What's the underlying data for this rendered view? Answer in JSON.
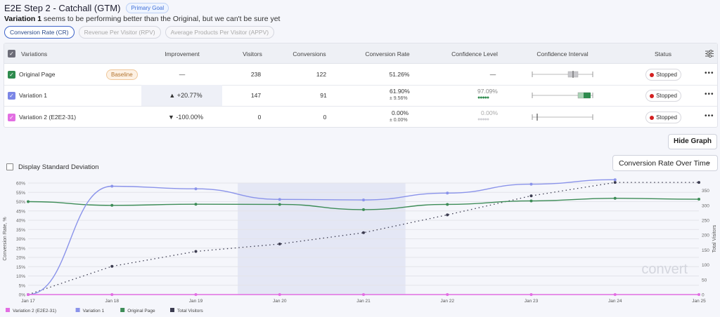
{
  "header": {
    "title": "E2E Step 2 - Catchall (GTM)",
    "goal_badge": "Primary Goal",
    "subtitle_strong": "Variation 1",
    "subtitle_rest": " seems to be performing better than the Original, but we can't be sure yet"
  },
  "goal_tabs": [
    {
      "label": "Conversion Rate (CR)",
      "active": true
    },
    {
      "label": "Revenue Per Visitor (RPV)",
      "active": false
    },
    {
      "label": "Average Products Per Visitor (APPV)",
      "active": false
    }
  ],
  "table": {
    "headers": {
      "variations": "Variations",
      "improvement": "Improvement",
      "visitors": "Visitors",
      "conversions": "Conversions",
      "conversion_rate": "Conversion Rate",
      "confidence_level": "Confidence Level",
      "confidence_interval": "Confidence Interval",
      "status": "Status"
    },
    "rows": [
      {
        "name": "Original Page",
        "badge": "Baseline",
        "improvement": "—",
        "visitors": "238",
        "conversions": "122",
        "conversion_rate": "51.26%",
        "cr_error": "",
        "confidence": "—",
        "status": "Stopped",
        "color": "#2e8b4e"
      },
      {
        "name": "Variation 1",
        "badge": "",
        "improvement": "▲ +20.77%",
        "visitors": "147",
        "conversions": "91",
        "conversion_rate": "61.90%",
        "cr_error": "± 9.56%",
        "confidence": "97.09%",
        "confidence_dots_filled": 5,
        "status": "Stopped",
        "color": "#7b86e6"
      },
      {
        "name": "Variation 2 (E2E2-31)",
        "badge": "",
        "improvement": "▼ -100.00%",
        "visitors": "0",
        "conversions": "0",
        "conversion_rate": "0.00%",
        "cr_error": "± 0.00%",
        "confidence": "0.00%",
        "confidence_dots_filled": 0,
        "status": "Stopped",
        "color": "#e26ee2"
      }
    ],
    "colors": {
      "confidence_positive": "#2e8b4e",
      "confidence_neutral": "#bbbbbb",
      "stopped_dot": "#d32020"
    }
  },
  "controls": {
    "hide_graph": "Hide Graph",
    "std_dev_label": "Display Standard Deviation",
    "chart_select": "Conversion Rate Over Time"
  },
  "chart_data": {
    "type": "line",
    "x": [
      "Jan 17",
      "Jan 18",
      "Jan 19",
      "Jan 20",
      "Jan 21",
      "Jan 22",
      "Jan 23",
      "Jan 24",
      "Jan 25"
    ],
    "ylabel": "Conversion Rate, %",
    "y2label": "Total Visitors",
    "ylim": [
      0,
      60
    ],
    "y2lim": [
      0,
      375
    ],
    "yticks": [
      "0%",
      "5%",
      "10%",
      "15%",
      "20%",
      "25%",
      "30%",
      "35%",
      "40%",
      "45%",
      "50%",
      "55%",
      "60%"
    ],
    "y2ticks": [
      "0",
      "50",
      "100",
      "150",
      "200",
      "250",
      "300",
      "350"
    ],
    "highlight_range": [
      "Jan 19.5",
      "Jan 21.5"
    ],
    "grid": true,
    "legend_position": "bottom-left",
    "watermark": "convert",
    "series": [
      {
        "name": "Variation 2 (E2E2-31)",
        "axis": "left",
        "color": "#e26ee2",
        "style": "solid",
        "values": [
          0,
          0,
          0,
          0,
          0,
          0,
          0,
          0,
          0
        ]
      },
      {
        "name": "Variation 1",
        "axis": "left",
        "color": "#8a93ea",
        "style": "solid",
        "values": [
          0,
          58.3,
          56.9,
          51.2,
          50.9,
          54.6,
          59.4,
          61.8,
          null
        ]
      },
      {
        "name": "Original Page",
        "axis": "left",
        "color": "#3d8c57",
        "style": "solid",
        "values": [
          50,
          48,
          48.6,
          48.5,
          45.7,
          48.5,
          50.4,
          51.8,
          51.3
        ]
      },
      {
        "name": "Total Visitors",
        "axis": "right",
        "color": "#3c3c50",
        "style": "dotted",
        "values": [
          0,
          95,
          145,
          170,
          208,
          268,
          332,
          377,
          377
        ]
      }
    ]
  }
}
